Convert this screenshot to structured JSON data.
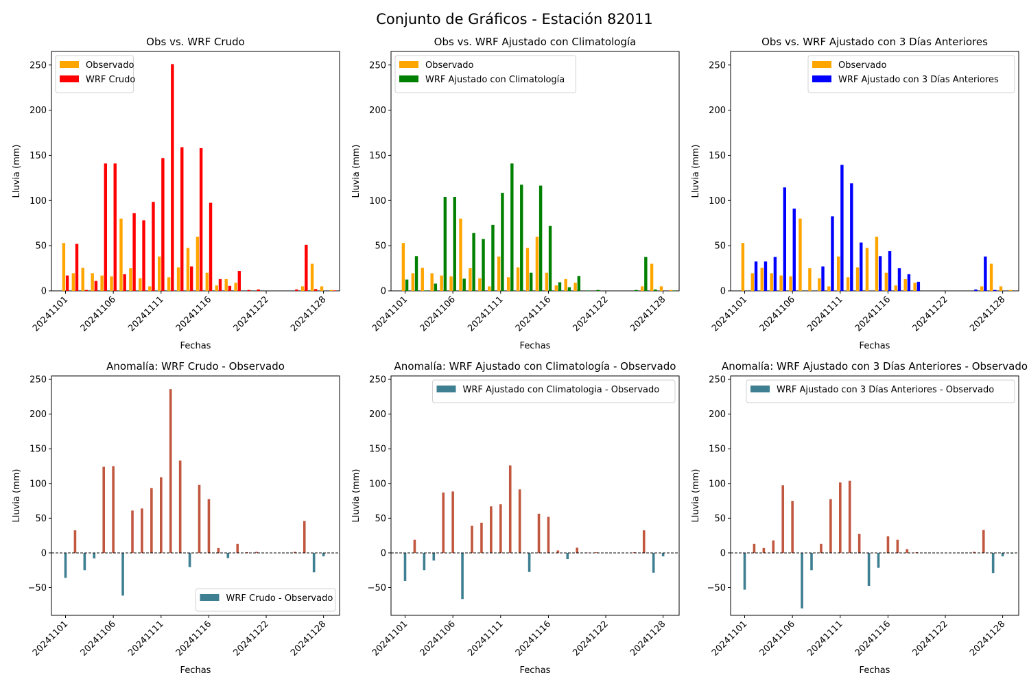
{
  "figure": {
    "title": "Conjunto de Gráficos - Estación 82011"
  },
  "colors": {
    "observed": "#ffa500",
    "raw": "#ff0000",
    "clim": "#008000",
    "prev3": "#0000ff",
    "anom_pos": "#c1573f",
    "anom_neg": "#3e7f91"
  },
  "chart_data": [
    {
      "type": "bar",
      "title": "Obs vs. WRF Crudo",
      "xlabel": "Fechas",
      "ylabel": "Lluvia (mm)",
      "ylim": [
        0,
        265
      ],
      "yticks": [
        0,
        50,
        100,
        150,
        200,
        250
      ],
      "xtick_labels": [
        "20241101",
        "20241106",
        "20241111",
        "20241116",
        "20241122",
        "20241128"
      ],
      "legend_position": "upper-left",
      "dates": [
        "20241101",
        "20241102",
        "20241103",
        "20241104",
        "20241105",
        "20241106",
        "20241107",
        "20241108",
        "20241109",
        "20241110",
        "20241111",
        "20241112",
        "20241113",
        "20241114",
        "20241115",
        "20241116",
        "20241117",
        "20241118",
        "20241119",
        "20241120",
        "20241121",
        "20241122",
        "20241123",
        "20241124",
        "20241125",
        "20241126",
        "20241127",
        "20241128",
        "20241129",
        "20241130"
      ],
      "series": [
        {
          "name": "Observado",
          "color": "#ffa500",
          "values": [
            53,
            19.5,
            25.5,
            19.5,
            17,
            16,
            80,
            25,
            14,
            5,
            38,
            15,
            26,
            47.5,
            60,
            20,
            6,
            13,
            9,
            0,
            0,
            0,
            0,
            0,
            0,
            5,
            30,
            5,
            1,
            0
          ]
        },
        {
          "name": "WRF Crudo",
          "color": "#ff0000",
          "values": [
            17,
            52,
            1,
            11,
            141,
            141,
            18.5,
            86,
            78,
            98.5,
            147,
            251,
            159,
            27,
            158,
            97.5,
            13,
            5.5,
            22,
            1,
            1.5,
            0,
            0,
            0,
            1.5,
            51,
            2,
            0,
            0.5,
            0
          ]
        }
      ]
    },
    {
      "type": "bar",
      "title": "Obs vs. WRF Ajustado con Climatología",
      "xlabel": "Fechas",
      "ylabel": "Lluvia (mm)",
      "ylim": [
        0,
        265
      ],
      "yticks": [
        0,
        50,
        100,
        150,
        200,
        250
      ],
      "xtick_labels": [
        "20241101",
        "20241106",
        "20241111",
        "20241116",
        "20241122",
        "20241128"
      ],
      "legend_position": "upper-left",
      "dates": [
        "20241101",
        "20241102",
        "20241103",
        "20241104",
        "20241105",
        "20241106",
        "20241107",
        "20241108",
        "20241109",
        "20241110",
        "20241111",
        "20241112",
        "20241113",
        "20241114",
        "20241115",
        "20241116",
        "20241117",
        "20241118",
        "20241119",
        "20241120",
        "20241121",
        "20241122",
        "20241123",
        "20241124",
        "20241125",
        "20241126",
        "20241127",
        "20241128",
        "20241129",
        "20241130"
      ],
      "series": [
        {
          "name": "Observado",
          "color": "#ffa500",
          "values": [
            53,
            19.5,
            25.5,
            19.5,
            17,
            16,
            80,
            25,
            14,
            5,
            38,
            15,
            26,
            47.5,
            60,
            20,
            6,
            13,
            9,
            0,
            0,
            0,
            0,
            0,
            0,
            5,
            30,
            5,
            1,
            0
          ]
        },
        {
          "name": "WRF Ajustado con Climatología",
          "color": "#008000",
          "values": [
            12.5,
            38.5,
            0.5,
            8,
            104,
            104,
            13.5,
            64,
            57.5,
            73,
            108.5,
            141,
            117.5,
            20,
            116.5,
            72,
            9.5,
            4,
            16.5,
            0.5,
            1,
            0,
            0,
            0,
            1,
            37.5,
            1.5,
            0,
            0.5,
            0
          ]
        }
      ]
    },
    {
      "type": "bar",
      "title": "Obs vs. WRF Ajustado con 3 Días Anteriores",
      "xlabel": "Fechas",
      "ylabel": "Lluvia (mm)",
      "ylim": [
        0,
        265
      ],
      "yticks": [
        0,
        50,
        100,
        150,
        200,
        250
      ],
      "xtick_labels": [
        "20241101",
        "20241106",
        "20241111",
        "20241116",
        "20241122",
        "20241128"
      ],
      "legend_position": "upper-right",
      "dates": [
        "20241101",
        "20241102",
        "20241103",
        "20241104",
        "20241105",
        "20241106",
        "20241107",
        "20241108",
        "20241109",
        "20241110",
        "20241111",
        "20241112",
        "20241113",
        "20241114",
        "20241115",
        "20241116",
        "20241117",
        "20241118",
        "20241119",
        "20241120",
        "20241121",
        "20241122",
        "20241123",
        "20241124",
        "20241125",
        "20241126",
        "20241127",
        "20241128",
        "20241129",
        "20241130"
      ],
      "series": [
        {
          "name": "Observado",
          "color": "#ffa500",
          "values": [
            53,
            19.5,
            25.5,
            19.5,
            17,
            16,
            80,
            25,
            14,
            5,
            38,
            15,
            26,
            47.5,
            60,
            20,
            6,
            13,
            9,
            0,
            0,
            0,
            0,
            0,
            0,
            5,
            30,
            5,
            1,
            0
          ]
        },
        {
          "name": "WRF Ajustado con 3 Días Anteriores",
          "color": "#0000ff",
          "values": [
            0,
            32.5,
            32.5,
            37.5,
            114.5,
            91,
            0,
            0,
            27,
            82.5,
            139.5,
            119,
            53.5,
            0,
            38.5,
            44,
            25,
            18.5,
            10,
            0,
            0,
            0,
            0,
            0,
            1.5,
            38,
            1,
            0,
            0,
            0
          ]
        }
      ]
    },
    {
      "type": "bar",
      "title": "Anomalía: WRF Crudo - Observado",
      "xlabel": "Fechas",
      "ylabel": "Lluvia (mm)",
      "ylim": [
        -90,
        255
      ],
      "yticks": [
        -50,
        0,
        50,
        100,
        150,
        200,
        250
      ],
      "xtick_labels": [
        "20241101",
        "20241106",
        "20241111",
        "20241116",
        "20241122",
        "20241128"
      ],
      "legend_position": "lower-right",
      "dates": [
        "20241101",
        "20241102",
        "20241103",
        "20241104",
        "20241105",
        "20241106",
        "20241107",
        "20241108",
        "20241109",
        "20241110",
        "20241111",
        "20241112",
        "20241113",
        "20241114",
        "20241115",
        "20241116",
        "20241117",
        "20241118",
        "20241119",
        "20241120",
        "20241121",
        "20241122",
        "20241123",
        "20241124",
        "20241125",
        "20241126",
        "20241127",
        "20241128",
        "20241129",
        "20241130"
      ],
      "series": [
        {
          "name": "WRF Crudo - Observado",
          "color": "#3e7f91",
          "values": [
            -36,
            32.5,
            -25,
            -8,
            124,
            125,
            -61.5,
            61,
            64,
            93.5,
            109,
            236,
            133,
            -20.5,
            98,
            77.5,
            7,
            -7.5,
            13,
            1,
            1.5,
            0,
            0,
            0,
            1.5,
            46,
            -28,
            -5,
            -0.5,
            0
          ]
        }
      ]
    },
    {
      "type": "bar",
      "title": "Anomalía: WRF Ajustado con Climatología - Observado",
      "xlabel": "Fechas",
      "ylabel": "Lluvia (mm)",
      "ylim": [
        -90,
        255
      ],
      "yticks": [
        -50,
        0,
        50,
        100,
        150,
        200,
        250
      ],
      "xtick_labels": [
        "20241101",
        "20241106",
        "20241111",
        "20241116",
        "20241122",
        "20241128"
      ],
      "legend_position": "upper-right",
      "dates": [
        "20241101",
        "20241102",
        "20241103",
        "20241104",
        "20241105",
        "20241106",
        "20241107",
        "20241108",
        "20241109",
        "20241110",
        "20241111",
        "20241112",
        "20241113",
        "20241114",
        "20241115",
        "20241116",
        "20241117",
        "20241118",
        "20241119",
        "20241120",
        "20241121",
        "20241122",
        "20241123",
        "20241124",
        "20241125",
        "20241126",
        "20241127",
        "20241128",
        "20241129",
        "20241130"
      ],
      "series": [
        {
          "name": "WRF Ajustado con Climatologia - Observado",
          "color": "#3e7f91",
          "values": [
            -40.5,
            19,
            -25,
            -11,
            87,
            88.5,
            -66.5,
            39,
            43.5,
            67,
            70,
            126,
            91.5,
            -27.5,
            56.5,
            52,
            3.5,
            -9,
            7.5,
            0.5,
            1,
            0,
            0,
            0,
            1,
            32.5,
            -28.5,
            -5,
            -0.5,
            0
          ]
        }
      ]
    },
    {
      "type": "bar",
      "title": "Anomalía: WRF Ajustado con 3 Días Anteriores - Observado",
      "xlabel": "Fechas",
      "ylabel": "Lluvia (mm)",
      "ylim": [
        -90,
        255
      ],
      "yticks": [
        -50,
        0,
        50,
        100,
        150,
        200,
        250
      ],
      "xtick_labels": [
        "20241101",
        "20241106",
        "20241111",
        "20241116",
        "20241122",
        "20241128"
      ],
      "legend_position": "upper-right",
      "dates": [
        "20241101",
        "20241102",
        "20241103",
        "20241104",
        "20241105",
        "20241106",
        "20241107",
        "20241108",
        "20241109",
        "20241110",
        "20241111",
        "20241112",
        "20241113",
        "20241114",
        "20241115",
        "20241116",
        "20241117",
        "20241118",
        "20241119",
        "20241120",
        "20241121",
        "20241122",
        "20241123",
        "20241124",
        "20241125",
        "20241126",
        "20241127",
        "20241128",
        "20241129",
        "20241130"
      ],
      "series": [
        {
          "name": "WRF Ajustado con 3 Días Anteriores - Observado",
          "color": "#3e7f91",
          "values": [
            -53,
            13,
            7,
            18,
            97.5,
            75,
            -80,
            -25,
            13,
            77.5,
            101.5,
            104,
            27.5,
            -47.5,
            -21.5,
            24,
            19,
            5.5,
            1,
            0,
            0,
            0,
            0,
            0,
            1.5,
            33,
            -29,
            -5,
            -1,
            0
          ]
        }
      ]
    }
  ]
}
